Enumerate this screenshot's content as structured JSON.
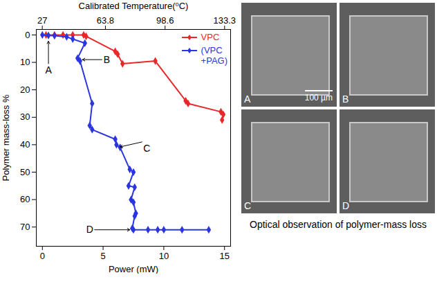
{
  "chart_data": {
    "type": "line",
    "xlabel": "Power (mW)",
    "ylabel": "Polymer mass-loss %",
    "x2label": "Calibrated Temperature(⁰C)",
    "xlim": [
      -0.5,
      15.5
    ],
    "xticks": [
      0,
      5,
      10,
      15
    ],
    "x2lim": [
      23.5,
      136.8
    ],
    "x2ticks": [
      27,
      63.8,
      98.6,
      133.3
    ],
    "ylim": [
      77,
      -2
    ],
    "yticks": [
      0,
      10,
      20,
      30,
      40,
      50,
      60,
      70
    ],
    "grid": false,
    "legend": "upper right",
    "series": [
      {
        "name": "VPC",
        "color": "#e8282a",
        "marker": "diamond",
        "x": [
          0.3,
          1.0,
          1.7,
          2.5,
          3.4,
          3.6,
          6.0,
          6.2,
          6.6,
          9.3,
          11.8,
          12.0,
          14.7,
          14.9,
          14.8
        ],
        "values": [
          0,
          0,
          0,
          0,
          0,
          0.5,
          6,
          7,
          10.5,
          9.5,
          24,
          25,
          28,
          29,
          31
        ]
      },
      {
        "name": "(VPC +PAG)",
        "color": "#2b35e0",
        "marker": "diamond",
        "x": [
          0,
          0.5,
          1.0,
          2.0,
          2.5,
          3.5,
          2.9,
          3.1,
          4.1,
          3.9,
          4.1,
          6.0,
          6.1,
          6.4,
          7.2,
          7.5,
          7.1,
          7.6,
          7.3,
          7.5,
          7.7,
          7.6,
          7.4,
          7.5,
          8.7,
          9.5,
          10.0,
          11.5,
          13.7
        ],
        "values": [
          0,
          0.2,
          0.3,
          0.7,
          1.5,
          3,
          8.5,
          9.5,
          25,
          33,
          34.5,
          38,
          40,
          41,
          49,
          50,
          55,
          55.5,
          60,
          61,
          65,
          66,
          70.5,
          71,
          71,
          71,
          71,
          71,
          71
        ]
      }
    ],
    "annotations": [
      {
        "text": "A",
        "x": 0.5,
        "y": 1.5
      },
      {
        "text": "B",
        "x": 3.1,
        "y": 9
      },
      {
        "text": "C",
        "x": 6.2,
        "y": 40
      },
      {
        "text": "D",
        "x": 7.4,
        "y": 71
      }
    ],
    "image_panels": {
      "labels": [
        "A",
        "B",
        "C",
        "D"
      ],
      "scale_bar": "100 µm",
      "caption": "Optical observation of polymer-mass loss"
    }
  }
}
